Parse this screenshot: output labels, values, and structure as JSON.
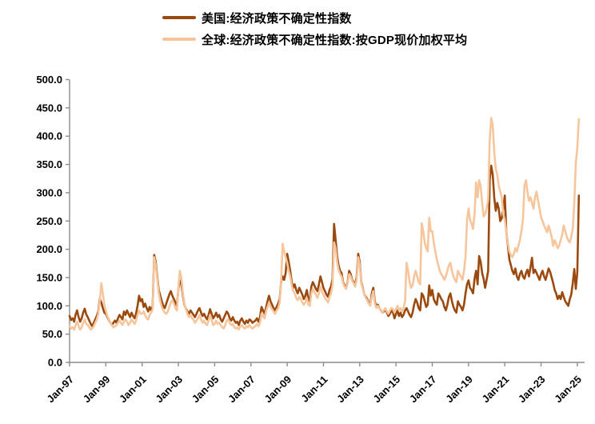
{
  "legend": {
    "items": [
      {
        "label": "美国:经济政策不确定性指数",
        "color": "#9B4A0F"
      },
      {
        "label": "全球:经济政策不确定性指数:按GDP现价加权平均",
        "color": "#F7C59C"
      }
    ]
  },
  "axes": {
    "axis_color": "#8C8C8C",
    "y_ticks": [
      "500.0",
      "450.0",
      "400.0",
      "350.0",
      "300.0",
      "250.0",
      "200.0",
      "150.0",
      "100.0",
      "50.0",
      "0.0"
    ],
    "x_ticks": [
      "Jan-97",
      "Jan-99",
      "Jan-01",
      "Jan-03",
      "Jan-05",
      "Jan-07",
      "Jan-09",
      "Jan-11",
      "Jan-13",
      "Jan-15",
      "Jan-17",
      "Jan-19",
      "Jan-21",
      "Jan-23",
      "Jan-25"
    ]
  },
  "chart_data": {
    "type": "line",
    "x_start": "Jan-1997",
    "x_interval": "monthly",
    "x_tick_labels": [
      "Jan-97",
      "Jan-99",
      "Jan-01",
      "Jan-03",
      "Jan-05",
      "Jan-07",
      "Jan-09",
      "Jan-11",
      "Jan-13",
      "Jan-15",
      "Jan-17",
      "Jan-19",
      "Jan-21",
      "Jan-23",
      "Jan-25"
    ],
    "ylim": [
      0,
      500
    ],
    "y_tick_step": 50,
    "grid": false,
    "legend_position": "top",
    "series": [
      {
        "name": "美国:经济政策不确定性指数",
        "color": "#9B4A0F",
        "values": [
          82,
          75,
          78,
          72,
          85,
          92,
          80,
          72,
          78,
          88,
          95,
          85,
          80,
          74,
          68,
          64,
          70,
          76,
          82,
          90,
          112,
          106,
          96,
          88,
          86,
          80,
          75,
          70,
          66,
          70,
          74,
          70,
          78,
          84,
          80,
          76,
          90,
          84,
          92,
          86,
          80,
          88,
          82,
          78,
          86,
          100,
          118,
          108,
          112,
          98,
          104,
          96,
          90,
          98,
          92,
          100,
          190,
          178,
          152,
          128,
          118,
          108,
          100,
          96,
          104,
          112,
          120,
          126,
          118,
          112,
          106,
          100,
          130,
          145,
          138,
          118,
          102,
          95,
          90,
          86,
          92,
          88,
          84,
          80,
          86,
          92,
          96,
          88,
          82,
          86,
          80,
          76,
          84,
          94,
          86,
          78,
          82,
          88,
          80,
          84,
          76,
          72,
          78,
          84,
          90,
          86,
          78,
          74,
          80,
          74,
          70,
          72,
          66,
          74,
          78,
          72,
          68,
          74,
          70,
          76,
          74,
          70,
          72,
          74,
          78,
          72,
          80,
          98,
          92,
          86,
          96,
          108,
          118,
          108,
          102,
          96,
          92,
          98,
          104,
          112,
          142,
          152,
          146,
          158,
          192,
          178,
          162,
          142,
          132,
          138,
          128,
          122,
          132,
          126,
          120,
          112,
          118,
          128,
          112,
          108,
          134,
          142,
          136,
          130,
          126,
          138,
          152,
          142,
          132,
          126,
          120,
          116,
          128,
          134,
          148,
          245,
          218,
          188,
          172,
          162,
          158,
          142,
          136,
          132,
          142,
          162,
          156,
          146,
          142,
          136,
          152,
          192,
          178,
          142,
          132,
          120,
          116,
          112,
          106,
          102,
          122,
          132,
          108,
          98,
          102,
          96,
          92,
          88,
          90,
          94,
          88,
          82,
          86,
          92,
          88,
          78,
          86,
          92,
          82,
          88,
          80,
          84,
          92,
          96,
          90,
          84,
          80,
          88,
          102,
          112,
          106,
          96,
          92,
          122,
          118,
          108,
          98,
          102,
          136,
          118,
          128,
          112,
          106,
          102,
          122,
          118,
          112,
          108,
          98,
          92,
          102,
          116,
          122,
          108,
          98,
          92,
          88,
          108,
          102,
          98,
          92,
          102,
          122,
          138,
          145,
          132,
          128,
          122,
          148,
          162,
          138,
          188,
          178,
          158,
          148,
          132,
          146,
          162,
          322,
          348,
          332,
          292,
          268,
          282,
          272,
          250,
          255,
          272,
          295,
          232,
          208,
          182,
          172,
          162,
          156,
          166,
          152,
          146,
          156,
          162,
          152,
          148,
          158,
          164,
          152,
          168,
          185,
          158,
          164,
          158,
          152,
          146,
          156,
          162,
          152,
          146,
          156,
          166,
          160,
          150,
          140,
          128,
          122,
          112,
          118,
          112,
          124,
          116,
          108,
          104,
          100,
          112,
          120,
          140,
          165,
          130,
          160,
          295
        ]
      },
      {
        "name": "全球:经济政策不确定性指数:按GDP现价加权平均",
        "color": "#F7C59C",
        "values": [
          65,
          60,
          62,
          58,
          66,
          72,
          64,
          58,
          62,
          70,
          76,
          68,
          66,
          62,
          58,
          60,
          64,
          70,
          76,
          86,
          108,
          140,
          122,
          102,
          92,
          82,
          76,
          70,
          66,
          62,
          64,
          66,
          70,
          74,
          70,
          66,
          72,
          76,
          72,
          66,
          70,
          76,
          72,
          68,
          74,
          84,
          92,
          86,
          86,
          90,
          84,
          78,
          76,
          84,
          88,
          94,
          186,
          172,
          148,
          122,
          108,
          98,
          92,
          88,
          86,
          90,
          98,
          106,
          110,
          104,
          96,
          92,
          132,
          162,
          150,
          122,
          104,
          94,
          86,
          80,
          84,
          78,
          76,
          70,
          74,
          78,
          84,
          76,
          70,
          74,
          68,
          66,
          74,
          84,
          76,
          66,
          68,
          74,
          68,
          70,
          66,
          62,
          60,
          66,
          74,
          76,
          70,
          66,
          68,
          62,
          60,
          62,
          58,
          64,
          66,
          62,
          60,
          64,
          62,
          66,
          62,
          60,
          62,
          64,
          68,
          64,
          70,
          86,
          82,
          78,
          90,
          98,
          106,
          98,
          94,
          90,
          86,
          92,
          96,
          106,
          142,
          210,
          196,
          186,
          176,
          162,
          152,
          136,
          126,
          122,
          114,
          110,
          116,
          112,
          106,
          102,
          106,
          114,
          102,
          100,
          122,
          130,
          124,
          120,
          114,
          122,
          134,
          126,
          120,
          114,
          110,
          106,
          116,
          122,
          136,
          212,
          202,
          178,
          164,
          156,
          152,
          140,
          134,
          130,
          140,
          156,
          152,
          144,
          140,
          134,
          146,
          186,
          172,
          140,
          130,
          120,
          114,
          110,
          104,
          100,
          116,
          126,
          104,
          96,
          100,
          96,
          92,
          88,
          92,
          96,
          90,
          86,
          92,
          96,
          94,
          88,
          94,
          100,
          92,
          96,
          90,
          96,
          108,
          176,
          162,
          142,
          132,
          136,
          152,
          162,
          152,
          142,
          138,
          246,
          232,
          212,
          202,
          196,
          256,
          232,
          232,
          212,
          196,
          182,
          172,
          162,
          156,
          152,
          146,
          152,
          162,
          172,
          176,
          162,
          152,
          146,
          142,
          162,
          156,
          152,
          146,
          162,
          186,
          252,
          272,
          252,
          246,
          236,
          262,
          318,
          292,
          322,
          312,
          282,
          258,
          262,
          272,
          288,
          392,
          432,
          420,
          372,
          342,
          332,
          312,
          302,
          292,
          262,
          252,
          232,
          212,
          196,
          190,
          186,
          192,
          202,
          196,
          206,
          216,
          232,
          252,
          312,
          322,
          302,
          286,
          292,
          282,
          272,
          292,
          302,
          286,
          272,
          256,
          250,
          242,
          236,
          230,
          242,
          232,
          222,
          206,
          216,
          210,
          202,
          206,
          216,
          226,
          242,
          232,
          222,
          216,
          212,
          222,
          236,
          282,
          352,
          380,
          430
        ]
      }
    ]
  }
}
